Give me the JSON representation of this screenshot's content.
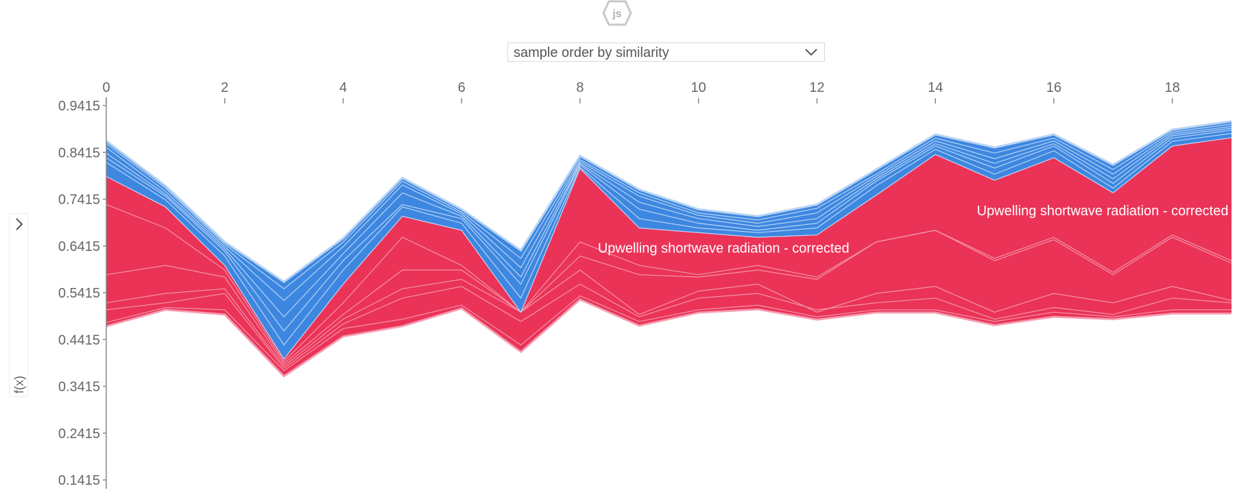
{
  "logo": {
    "text": "js",
    "icon": "js-hexagon-icon"
  },
  "ordering": {
    "selected": "sample order by similarity"
  },
  "yaxis_control": {
    "label": "f(x)",
    "icon": "chevron-right-icon"
  },
  "colors": {
    "positive": "#ea3357",
    "positive_line": "#f59db3",
    "negative": "#3d87e0",
    "negative_line": "#b8d4f5"
  },
  "chart_data": {
    "type": "area",
    "x": [
      0,
      1,
      2,
      3,
      4,
      5,
      6,
      7,
      8,
      9,
      10,
      11,
      12,
      13,
      14,
      15,
      16,
      17,
      18,
      19
    ],
    "x_ticks": [
      "0",
      "2",
      "4",
      "6",
      "8",
      "10",
      "12",
      "14",
      "16",
      "18"
    ],
    "y_ticks": [
      "0.1415",
      "0.2415",
      "0.3415",
      "0.4415",
      "0.5415",
      "0.6415",
      "0.7415",
      "0.8415",
      "0.9415"
    ],
    "ylabel": "f(x)",
    "ylim": [
      0.1315,
      0.955
    ],
    "xlim": [
      0,
      19
    ],
    "base_value": 0.5415,
    "positive_boundaries": [
      [
        0.47,
        0.505,
        0.495,
        0.363,
        0.448,
        0.47,
        0.508,
        0.415,
        0.527,
        0.471,
        0.499,
        0.506,
        0.484,
        0.499,
        0.499,
        0.472,
        0.49,
        0.485,
        0.497,
        0.497
      ],
      [
        0.478,
        0.51,
        0.505,
        0.375,
        0.465,
        0.485,
        0.515,
        0.43,
        0.535,
        0.48,
        0.505,
        0.515,
        0.49,
        0.505,
        0.505,
        0.48,
        0.5,
        0.49,
        0.505,
        0.505
      ],
      [
        0.505,
        0.52,
        0.54,
        0.38,
        0.475,
        0.53,
        0.555,
        0.48,
        0.56,
        0.49,
        0.53,
        0.54,
        0.505,
        0.52,
        0.53,
        0.485,
        0.51,
        0.495,
        0.53,
        0.52
      ],
      [
        0.52,
        0.54,
        0.55,
        0.385,
        0.485,
        0.55,
        0.57,
        0.5,
        0.59,
        0.495,
        0.545,
        0.56,
        0.5,
        0.54,
        0.555,
        0.5,
        0.54,
        0.52,
        0.555,
        0.525
      ],
      [
        0.58,
        0.6,
        0.575,
        0.39,
        0.495,
        0.59,
        0.59,
        0.5,
        0.62,
        0.58,
        0.575,
        0.59,
        0.57,
        0.65,
        0.675,
        0.61,
        0.655,
        0.58,
        0.66,
        0.605
      ],
      [
        0.73,
        0.68,
        0.59,
        0.395,
        0.52,
        0.66,
        0.6,
        0.5,
        0.65,
        0.6,
        0.58,
        0.6,
        0.575,
        0.65,
        0.675,
        0.615,
        0.66,
        0.585,
        0.665,
        0.61
      ],
      [
        0.79,
        0.725,
        0.6,
        0.4,
        0.56,
        0.705,
        0.675,
        0.5,
        0.807,
        0.68,
        0.67,
        0.66,
        0.665,
        0.75,
        0.837,
        0.782,
        0.83,
        0.755,
        0.855,
        0.873
      ]
    ],
    "negative_boundaries": [
      [
        0.79,
        0.725,
        0.6,
        0.4,
        0.56,
        0.705,
        0.675,
        0.5,
        0.807,
        0.68,
        0.67,
        0.66,
        0.665,
        0.75,
        0.837,
        0.782,
        0.83,
        0.755,
        0.855,
        0.873
      ],
      [
        0.82,
        0.74,
        0.62,
        0.43,
        0.59,
        0.725,
        0.69,
        0.53,
        0.81,
        0.7,
        0.68,
        0.67,
        0.68,
        0.77,
        0.848,
        0.795,
        0.845,
        0.765,
        0.865,
        0.882
      ],
      [
        0.83,
        0.748,
        0.63,
        0.46,
        0.61,
        0.73,
        0.7,
        0.56,
        0.815,
        0.72,
        0.69,
        0.675,
        0.69,
        0.78,
        0.855,
        0.808,
        0.855,
        0.775,
        0.872,
        0.889
      ],
      [
        0.84,
        0.752,
        0.635,
        0.49,
        0.625,
        0.755,
        0.705,
        0.575,
        0.818,
        0.735,
        0.7,
        0.683,
        0.7,
        0.785,
        0.86,
        0.818,
        0.86,
        0.785,
        0.877,
        0.893
      ],
      [
        0.852,
        0.758,
        0.64,
        0.525,
        0.64,
        0.772,
        0.71,
        0.595,
        0.822,
        0.748,
        0.707,
        0.69,
        0.712,
        0.79,
        0.866,
        0.828,
        0.866,
        0.795,
        0.881,
        0.897
      ],
      [
        0.86,
        0.765,
        0.645,
        0.55,
        0.65,
        0.78,
        0.714,
        0.615,
        0.826,
        0.755,
        0.712,
        0.697,
        0.722,
        0.795,
        0.872,
        0.84,
        0.872,
        0.805,
        0.885,
        0.902
      ],
      [
        0.866,
        0.77,
        0.65,
        0.565,
        0.658,
        0.787,
        0.72,
        0.632,
        0.834,
        0.762,
        0.72,
        0.705,
        0.73,
        0.805,
        0.88,
        0.852,
        0.88,
        0.815,
        0.89,
        0.908
      ]
    ],
    "annotations": [
      {
        "text": "Upwelling shortwave radiation - corrected",
        "x": 8.3,
        "y": 0.627
      },
      {
        "text": "Upwelling shortwave radiation - corrected",
        "x": 14.7,
        "y": 0.707
      }
    ]
  }
}
